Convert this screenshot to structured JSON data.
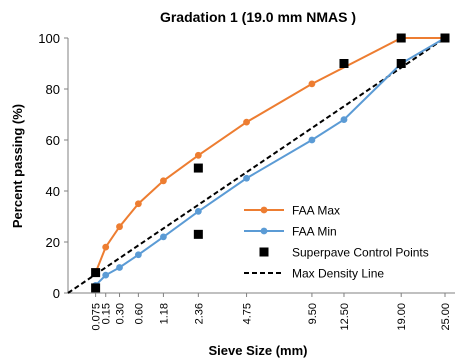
{
  "chart_data": {
    "type": "line",
    "title": "Gradation 1 (19.0 mm NMAS )",
    "xlabel": "Sieve Size (mm)",
    "ylabel": "Percent passing (%)",
    "x_scale": "power 0.45",
    "ylim": [
      0,
      100
    ],
    "y_ticks": [
      0,
      20,
      40,
      60,
      80,
      100
    ],
    "x_ticks": [
      {
        "value": 0.075,
        "label": "0.075"
      },
      {
        "value": 0.15,
        "label": "0.15"
      },
      {
        "value": 0.3,
        "label": "0.30"
      },
      {
        "value": 0.6,
        "label": "0.60"
      },
      {
        "value": 1.18,
        "label": "1.18"
      },
      {
        "value": 2.36,
        "label": "2.36"
      },
      {
        "value": 4.75,
        "label": "4.75"
      },
      {
        "value": 9.5,
        "label": "9.50"
      },
      {
        "value": 12.5,
        "label": "12.50"
      },
      {
        "value": 19.0,
        "label": "19.00"
      },
      {
        "value": 25.0,
        "label": "25.00"
      }
    ],
    "grid": false,
    "legend_position": "bottom-right",
    "series": [
      {
        "name": "FAA Max",
        "color": "#ED7D31",
        "style": "line-marker",
        "x": [
          0.075,
          0.15,
          0.3,
          0.6,
          1.18,
          2.36,
          4.75,
          9.5,
          19.0,
          25.0
        ],
        "y": [
          8,
          18,
          26,
          35,
          44,
          54,
          67,
          82,
          100,
          100
        ]
      },
      {
        "name": "FAA Min",
        "color": "#5B9BD5",
        "style": "line-marker",
        "x": [
          0.075,
          0.15,
          0.3,
          0.6,
          1.18,
          2.36,
          4.75,
          9.5,
          12.5,
          19.0,
          25.0
        ],
        "y": [
          3,
          7,
          10,
          15,
          22,
          32,
          45,
          60,
          68,
          90,
          100
        ]
      },
      {
        "name": "Superpave Control Points",
        "color": "#000000",
        "style": "square-marker",
        "x": [
          0.075,
          0.075,
          2.36,
          2.36,
          12.5,
          19.0,
          19.0,
          25.0
        ],
        "y": [
          2,
          8,
          23,
          49,
          90,
          90,
          100,
          100
        ]
      },
      {
        "name": "Max Density Line",
        "color": "#000000",
        "style": "dashed",
        "x": [
          0,
          25.0
        ],
        "y": [
          0,
          100
        ]
      }
    ]
  }
}
